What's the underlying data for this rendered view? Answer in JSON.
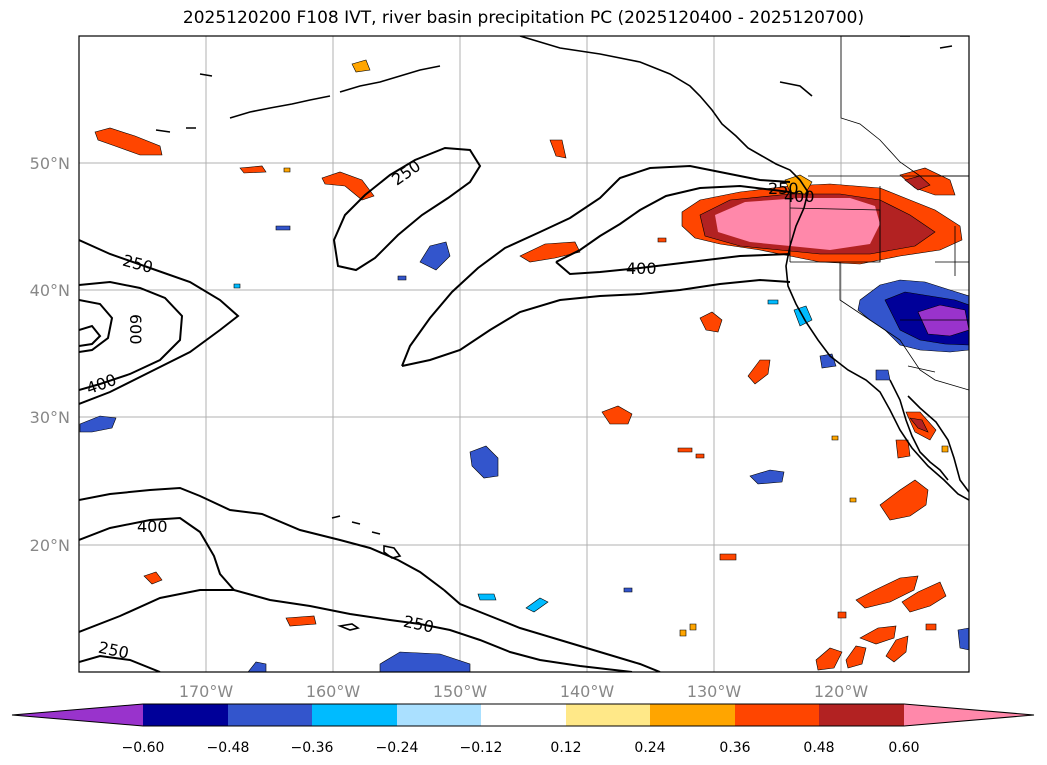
{
  "title": "2025120200 F108 IVT, river basin precipitation PC (2025120400 - 2025120700)",
  "map": {
    "lon_labels": [
      "170°W",
      "160°W",
      "150°W",
      "140°W",
      "130°W",
      "120°W"
    ],
    "lat_labels": [
      "50°N",
      "40°N",
      "30°N",
      "20°N"
    ],
    "contour_labels": [
      "250",
      "250",
      "400",
      "600",
      "400",
      "400",
      "250",
      "250",
      "250",
      "400"
    ]
  },
  "colorbar": {
    "tick_labels": [
      "−0.60",
      "−0.48",
      "−0.36",
      "−0.24",
      "−0.12",
      "0.12",
      "0.24",
      "0.36",
      "0.48",
      "0.60"
    ],
    "colors": [
      "#9933cc",
      "#000099",
      "#3355cc",
      "#00bbff",
      "#aae0ff",
      "#ffffff",
      "#ffe888",
      "#ffa500",
      "#ff4500",
      "#b22222",
      "#ff88aa"
    ]
  },
  "palette": {
    "positive_high": "#ff88aa",
    "positive_dark": "#b22222",
    "positive_mid": "#ff4500",
    "positive_low": "#ffa500",
    "positive_min": "#ffe888",
    "negative_min": "#aae0ff",
    "negative_low": "#00bbff",
    "negative_mid": "#3355cc",
    "negative_dark": "#000099",
    "negative_high": "#9933cc"
  }
}
